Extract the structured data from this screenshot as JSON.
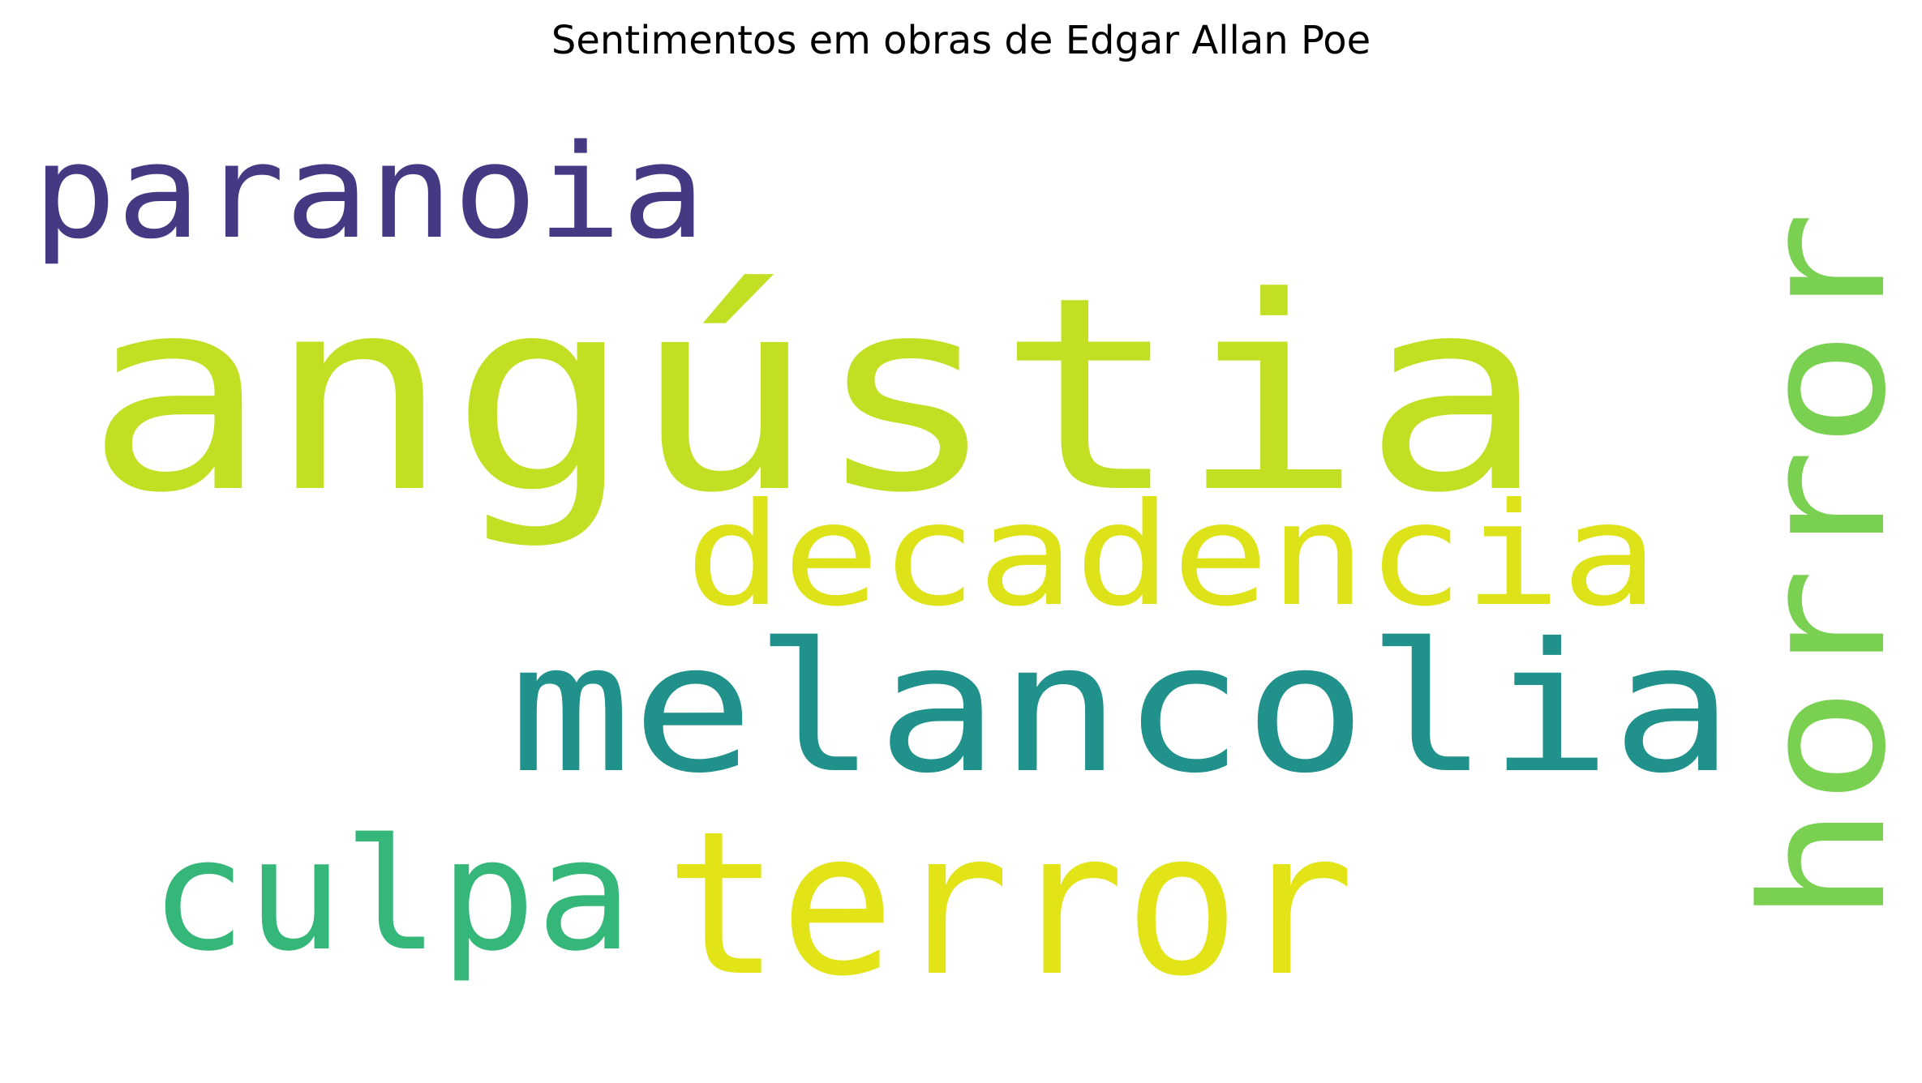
{
  "chart_data": {
    "type": "wordcloud",
    "title": "Sentimentos em obras de Edgar Allan Poe",
    "words": [
      {
        "text": "angústia",
        "color": "#c2df23"
      },
      {
        "text": "paranoia",
        "color": "#443983"
      },
      {
        "text": "horror",
        "color": "#7ad151"
      },
      {
        "text": "decadencia",
        "color": "#dde318"
      },
      {
        "text": "melancolia",
        "color": "#21918c"
      },
      {
        "text": "culpa",
        "color": "#35b779"
      },
      {
        "text": "terror",
        "color": "#e2e418"
      }
    ]
  }
}
